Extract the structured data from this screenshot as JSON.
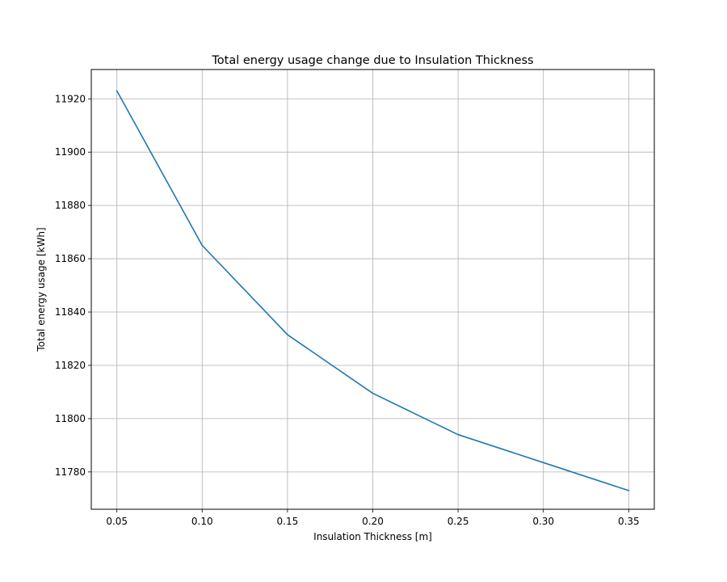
{
  "chart_data": {
    "type": "line",
    "title": "Total energy usage change due to Insulation Thickness",
    "xlabel": "Insulation Thickness [m]",
    "ylabel": "Total energy usage [kWh]",
    "x": [
      0.05,
      0.1,
      0.15,
      0.2,
      0.25,
      0.3,
      0.35
    ],
    "series": [
      {
        "values": [
          11923,
          11865,
          11831.5,
          11809.5,
          11794,
          11783.5,
          11773
        ],
        "color": "#1f77b4"
      }
    ],
    "xlim": [
      0.035,
      0.365
    ],
    "ylim": [
      11766,
      11931
    ],
    "xticks": [
      "0.05",
      "0.10",
      "0.15",
      "0.20",
      "0.25",
      "0.30",
      "0.35"
    ],
    "yticks": [
      "11780",
      "11800",
      "11820",
      "11840",
      "11860",
      "11880",
      "11900",
      "11920"
    ],
    "grid": true,
    "legend": false
  }
}
